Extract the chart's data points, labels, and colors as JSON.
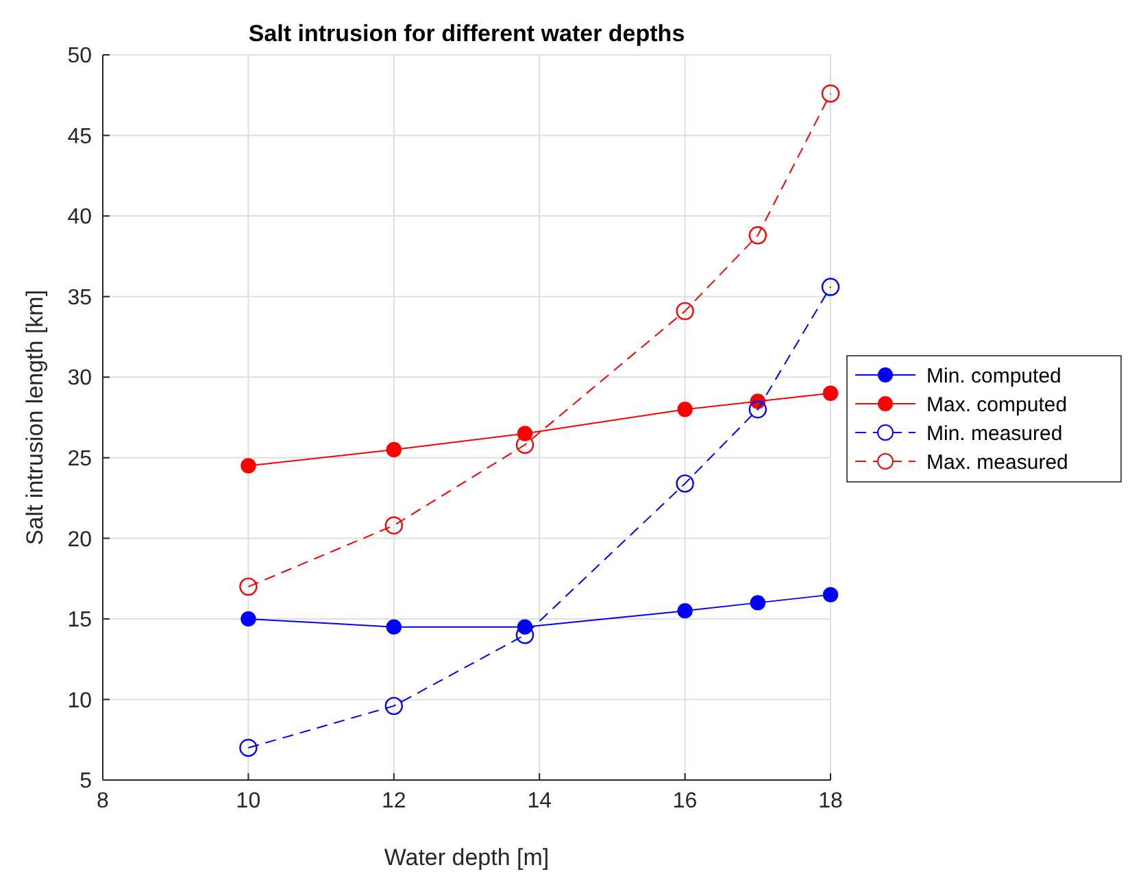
{
  "chart_data": {
    "type": "line",
    "title": "Salt intrusion for different water depths",
    "xlabel": "Water depth [m]",
    "ylabel": "Salt intrusion length [km]",
    "x": [
      10,
      12,
      13.8,
      16,
      17,
      18
    ],
    "series": [
      {
        "name": "Min. computed",
        "color": "#0000ff",
        "marker": "circle",
        "line_style": "solid",
        "values": [
          15,
          14.5,
          14.5,
          15.5,
          16,
          16.5
        ]
      },
      {
        "name": "Max. computed",
        "color": "#ff0000",
        "marker": "circle",
        "line_style": "solid",
        "values": [
          24.5,
          25.5,
          26.5,
          28,
          28.5,
          29
        ]
      },
      {
        "name": "Min. measured",
        "color": "#0000ff",
        "marker": "circle",
        "line_style": "dashed",
        "values": [
          7,
          9.6,
          14,
          23.4,
          28,
          35.6
        ]
      },
      {
        "name": "Max. measured",
        "color": "#ff0000",
        "marker": "circle",
        "line_style": "dashed",
        "values": [
          17,
          20.8,
          25.8,
          34.1,
          38.8,
          47.6
        ]
      }
    ],
    "xlim": [
      8,
      18
    ],
    "xticks": [
      8,
      10,
      12,
      14,
      16,
      18
    ],
    "ylim": [
      5,
      50
    ],
    "yticks": [
      5,
      10,
      15,
      20,
      25,
      30,
      35,
      40,
      45,
      50
    ],
    "grid": true,
    "legend": "right"
  }
}
